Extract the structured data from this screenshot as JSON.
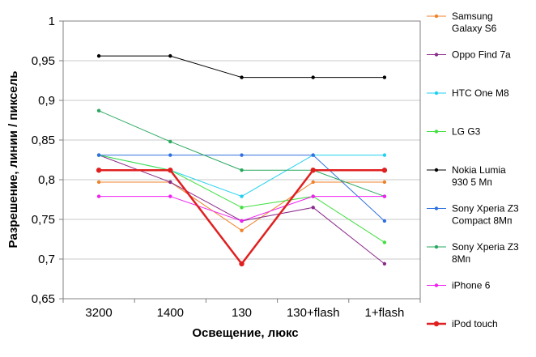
{
  "chart_data": {
    "type": "line",
    "title": "",
    "xlabel": "Освещение,  люкс",
    "ylabel": "Разрешение,  линии / пиксель",
    "categories": [
      "3200",
      "1400",
      "130",
      "130+flash",
      "1+flash"
    ],
    "ylim": [
      0.65,
      1
    ],
    "yticks": [
      0.65,
      0.7,
      0.75,
      0.8,
      0.85,
      0.9,
      0.95,
      1
    ],
    "ytick_labels": [
      "0,65",
      "0,7",
      "0,75",
      "0,8",
      "0,85",
      "0,9",
      "0,95",
      "1"
    ],
    "grid": "horizontal",
    "legend": "right",
    "series": [
      {
        "name": "Samsung Galaxy S6",
        "legend_lines": [
          "Samsung",
          "Galaxy S6"
        ],
        "color": "#f0822a",
        "values": [
          0.797,
          0.797,
          0.736,
          0.797,
          0.797
        ]
      },
      {
        "name": "Oppo Find 7a",
        "legend_lines": [
          "Oppo Find 7a"
        ],
        "color": "#8b2a8b",
        "values": [
          0.831,
          0.797,
          0.748,
          0.765,
          0.694
        ]
      },
      {
        "name": "HTC One M8",
        "legend_lines": [
          "HTC One M8"
        ],
        "color": "#21d0f0",
        "values": [
          0.831,
          0.812,
          0.779,
          0.831,
          0.831
        ]
      },
      {
        "name": "LG G3",
        "legend_lines": [
          "LG G3"
        ],
        "color": "#40e040",
        "values": [
          0.831,
          0.812,
          0.765,
          0.779,
          0.721
        ]
      },
      {
        "name": "Nokia Lumia 930 5 Мп",
        "legend_lines": [
          "Nokia Lumia",
          "930 5 Мп"
        ],
        "color": "#000000",
        "values": [
          0.956,
          0.956,
          0.929,
          0.929,
          0.929
        ]
      },
      {
        "name": "Sony Xperia Z3 Compact 8Мп",
        "legend_lines": [
          "Sony Xperia Z3",
          "Compact 8Мп"
        ],
        "color": "#3070e0",
        "values": [
          0.831,
          0.831,
          0.831,
          0.831,
          0.748
        ]
      },
      {
        "name": "Sony Xperia Z3 8Мп",
        "legend_lines": [
          "Sony Xperia Z3",
          "8Мп"
        ],
        "color": "#2aa860",
        "values": [
          0.887,
          0.848,
          0.812,
          0.812,
          0.779
        ]
      },
      {
        "name": "iPhone 6",
        "legend_lines": [
          "iPhone 6"
        ],
        "color": "#f020f0",
        "values": [
          0.779,
          0.779,
          0.748,
          0.779,
          0.779
        ]
      },
      {
        "name": "iPod touch",
        "legend_lines": [
          "iPod touch"
        ],
        "color": "#e02020",
        "bold": true,
        "values": [
          0.812,
          0.812,
          0.694,
          0.812,
          0.812
        ]
      }
    ]
  }
}
